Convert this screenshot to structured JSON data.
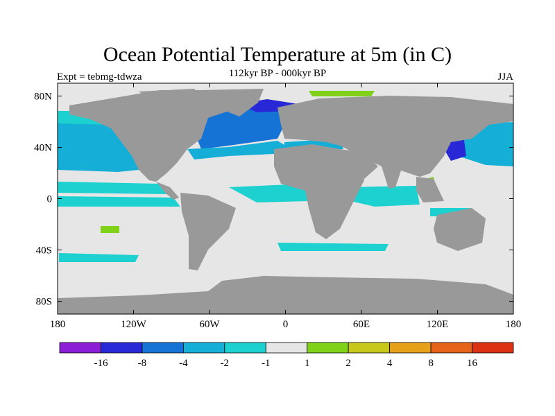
{
  "title": "Ocean Potential Temperature at 5m (in C)",
  "subtitle": "112kyr BP - 000kyr BP",
  "experiment": "Expt = tebmg-tdwza",
  "season": "JJA",
  "map": {
    "lon_range": [
      -180,
      180
    ],
    "lat_range": [
      -90,
      90
    ],
    "lon_ticks": [
      {
        "value": -180,
        "label": "180"
      },
      {
        "value": -120,
        "label": "120W"
      },
      {
        "value": -60,
        "label": "60W"
      },
      {
        "value": 0,
        "label": "0"
      },
      {
        "value": 60,
        "label": "60E"
      },
      {
        "value": 120,
        "label": "120E"
      },
      {
        "value": 180,
        "label": "180"
      }
    ],
    "lat_ticks": [
      {
        "value": 80,
        "label": "80N"
      },
      {
        "value": 40,
        "label": "40N"
      },
      {
        "value": 0,
        "label": "0"
      },
      {
        "value": -40,
        "label": "40S"
      },
      {
        "value": -80,
        "label": "80S"
      }
    ],
    "land_color": "#999999",
    "ocean_color": "#e6e6e6"
  },
  "colorbar": {
    "colors": [
      "#8c1fd6",
      "#2828d6",
      "#1473d4",
      "#14aed6",
      "#1cd1cf",
      "#e6e6e6",
      "#7fd11a",
      "#c8c81a",
      "#e6a01a",
      "#e6641a",
      "#dc3214"
    ],
    "boundaries": [
      "-16",
      "-8",
      "-4",
      "-2",
      "-1",
      "1",
      "2",
      "4",
      "8",
      "16"
    ]
  },
  "anomaly_colors": {
    "cool_strong": "#1473d4",
    "cool_medium": "#14aed6",
    "cool_weak": "#1cd1cf",
    "deep_blue": "#2828d6",
    "warm_weak": "#7fd11a"
  }
}
